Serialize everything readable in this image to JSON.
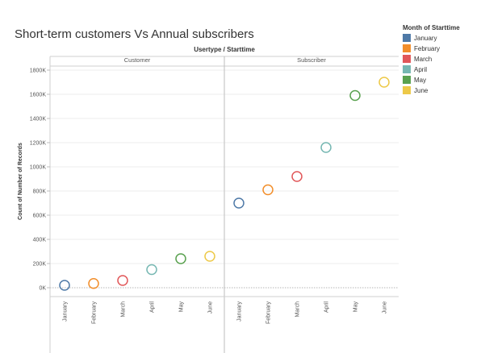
{
  "chart_data": {
    "type": "scatter",
    "title": "Short-term customers Vs Annual subscribers",
    "column_header": "Usertype / Starttime",
    "facets": [
      "Customer",
      "Subscriber"
    ],
    "categories": [
      "January",
      "February",
      "March",
      "April",
      "May",
      "June"
    ],
    "ylabel": "Count of Number of Records",
    "ylim": [
      0,
      1800000
    ],
    "y_ticks": [
      0,
      200000,
      400000,
      600000,
      800000,
      1000000,
      1200000,
      1400000,
      1600000,
      1800000
    ],
    "y_tick_labels": [
      "0K",
      "200K",
      "400K",
      "600K",
      "800K",
      "1000K",
      "1200K",
      "1400K",
      "1600K",
      "1800K"
    ],
    "grid": true,
    "marker": "hollow-circle",
    "series": [
      {
        "facet": "Customer",
        "values": [
          20000,
          35000,
          60000,
          150000,
          240000,
          260000
        ]
      },
      {
        "facet": "Subscriber",
        "values": [
          700000,
          810000,
          920000,
          1160000,
          1590000,
          1700000
        ]
      }
    ],
    "legend": {
      "title": "Month of Starttime",
      "position": "top-right",
      "items": [
        {
          "label": "January",
          "color": "#4e79a7"
        },
        {
          "label": "February",
          "color": "#f28e2b"
        },
        {
          "label": "March",
          "color": "#e15759"
        },
        {
          "label": "April",
          "color": "#76b7b2"
        },
        {
          "label": "May",
          "color": "#59a14f"
        },
        {
          "label": "June",
          "color": "#edc948"
        }
      ]
    }
  }
}
